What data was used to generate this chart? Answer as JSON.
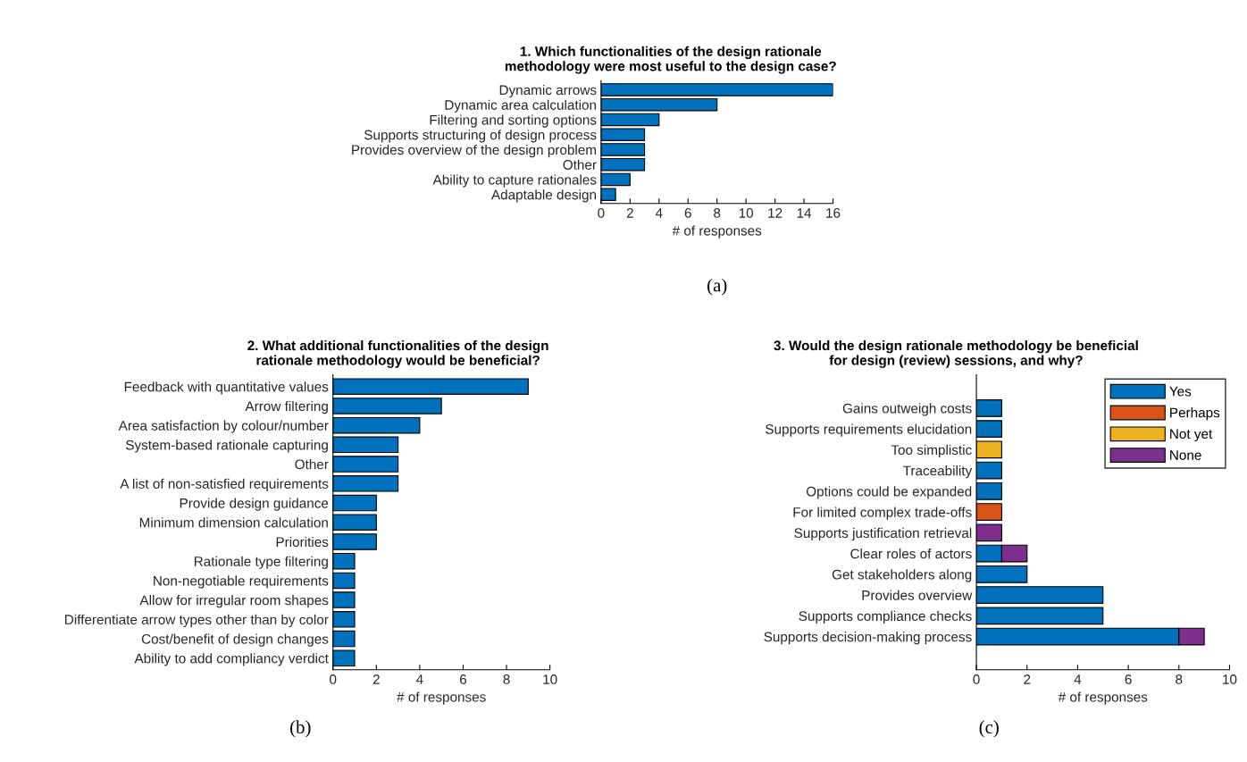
{
  "chart_data": [
    {
      "type": "bar",
      "orientation": "horizontal",
      "title": "1. Which functionalities of the design rationale\nmethodology were most useful to the design case?",
      "xlabel": "# of responses",
      "categories": [
        "Dynamic arrows",
        "Dynamic area calculation",
        "Filtering and sorting options",
        "Supports structuring of design process",
        "Provides overview of the design problem",
        "Other",
        "Ability to capture rationales",
        "Adaptable design"
      ],
      "series": [
        {
          "color": "#0072bd",
          "values": [
            16,
            8,
            4,
            3,
            3,
            3,
            2,
            1
          ]
        }
      ],
      "xlim": [
        0,
        16
      ],
      "xticks": [
        0,
        2,
        4,
        6,
        8,
        10,
        12,
        14,
        16
      ],
      "grid": false,
      "legend": false,
      "annotations": [
        "(a)"
      ]
    },
    {
      "type": "bar",
      "orientation": "horizontal",
      "title": "2. What additional functionalities of the design\nrationale methodology would be beneficial?",
      "xlabel": "# of responses",
      "categories": [
        "Feedback with quantitative values",
        "Arrow filtering",
        "Area satisfaction by colour/number",
        "System-based rationale capturing",
        "Other",
        "A list of non-satisfied requirements",
        "Provide design guidance",
        "Minimum dimension calculation",
        "Priorities",
        "Rationale type filtering",
        "Non-negotiable requirements",
        "Allow for irregular room shapes",
        "Differentiate arrow types other than by color",
        "Cost/benefit of design changes",
        "Ability to add compliancy verdict"
      ],
      "series": [
        {
          "color": "#0072bd",
          "values": [
            9,
            5,
            4,
            3,
            3,
            3,
            2,
            2,
            2,
            1,
            1,
            1,
            1,
            1,
            1
          ]
        }
      ],
      "xlim": [
        0,
        10
      ],
      "xticks": [
        0,
        2,
        4,
        6,
        8,
        10
      ],
      "grid": false,
      "legend": false,
      "annotations": [
        "(b)"
      ]
    },
    {
      "type": "bar",
      "orientation": "horizontal",
      "stacked": true,
      "title": "3. Would the design rationale methodology be beneficial\nfor design (review) sessions, and why?",
      "xlabel": "# of responses",
      "categories": [
        "Gains outweigh costs",
        "Supports requirements elucidation",
        "Too simplistic",
        "Traceability",
        "Options could be expanded",
        "For limited complex trade-offs",
        "Supports justification retrieval",
        "Clear roles of actors",
        "Get stakeholders along",
        "Provides overview",
        "Supports compliance checks",
        "Supports decision-making process"
      ],
      "series": [
        {
          "name": "Yes",
          "color": "#0072bd",
          "values": [
            1,
            1,
            null,
            1,
            1,
            null,
            null,
            1,
            2,
            5,
            5,
            8
          ]
        },
        {
          "name": "Perhaps",
          "color": "#d95319",
          "values": [
            null,
            null,
            null,
            null,
            null,
            1,
            null,
            null,
            null,
            null,
            null,
            null
          ]
        },
        {
          "name": "Not yet",
          "color": "#edb120",
          "values": [
            null,
            null,
            1,
            null,
            null,
            null,
            null,
            null,
            null,
            null,
            null,
            null
          ]
        },
        {
          "name": "None",
          "color": "#7e2f8e",
          "values": [
            null,
            null,
            null,
            null,
            null,
            null,
            1,
            1,
            null,
            null,
            null,
            1
          ]
        }
      ],
      "xlim": [
        0,
        10
      ],
      "xticks": [
        0,
        2,
        4,
        6,
        8,
        10
      ],
      "grid": false,
      "legend": "top right",
      "annotations": [
        "(c)"
      ]
    }
  ]
}
